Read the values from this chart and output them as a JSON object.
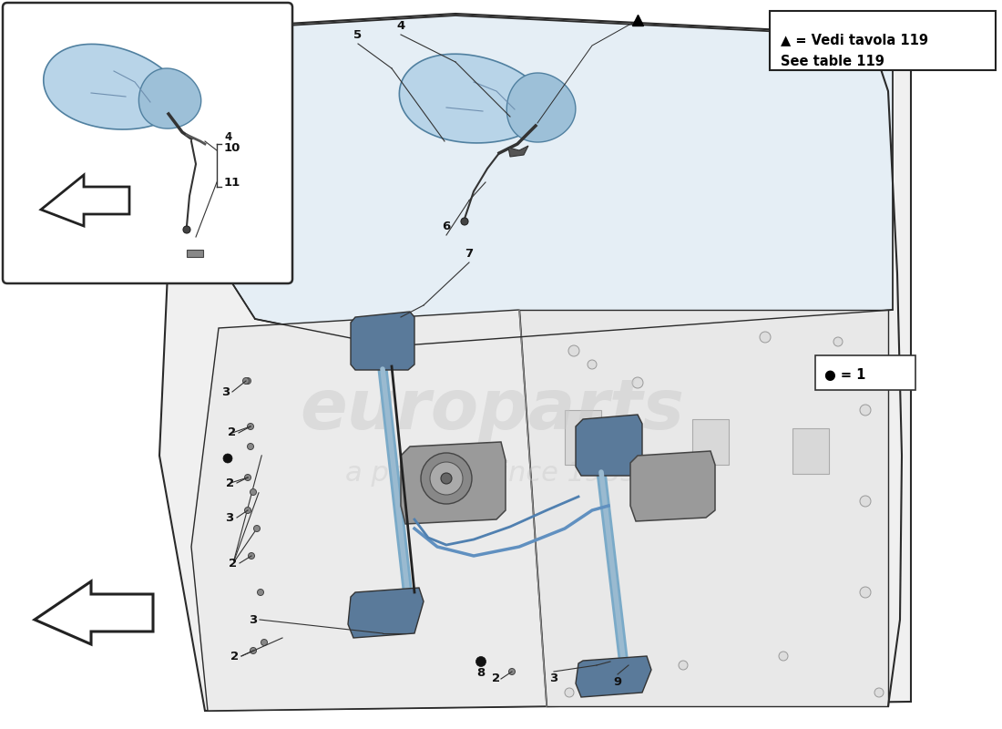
{
  "bg_color": "#ffffff",
  "legend_line1": "▲ = Vedi tavola 119",
  "legend_line2": "See table 119",
  "dot_legend": "● = 1",
  "mirror_blue": "#b8d4e8",
  "mirror_blue2": "#9dc0d8",
  "door_fill": "#f2f2f2",
  "door_stroke": "#2a2a2a",
  "mech_blue": "#7aaac8",
  "mech_dark": "#4a6a88",
  "label_fs": 9.5,
  "watermark_color": "#d0d0d0",
  "inset_border": "#2a2a2a"
}
